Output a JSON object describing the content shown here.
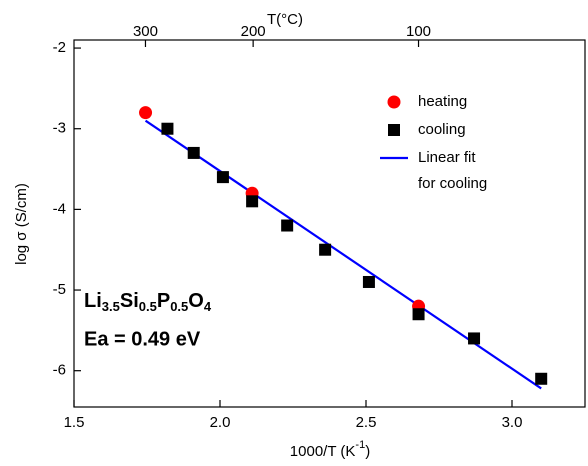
{
  "chart_data": {
    "type": "scatter",
    "top_axis_label": "T(°C)",
    "top_ticks": [
      300,
      200,
      100
    ],
    "xlabel": [
      "1000/T (K",
      "-1",
      ")"
    ],
    "ylabel": "log σ (S/cm)",
    "xlim": [
      1.5,
      3.25
    ],
    "ylim": [
      -6.45,
      -1.9
    ],
    "xticks": [
      1.5,
      {
        "value": 2,
        "label": "2.0"
      },
      2.5,
      {
        "value": 3,
        "label": "3.0"
      }
    ],
    "yticks": [
      -2,
      -3,
      -4,
      -5,
      -6
    ],
    "legend": "upper right",
    "series": [
      {
        "name": [
          "heating"
        ],
        "type": "scatter",
        "marker": "circle",
        "color": "#ff0000",
        "x": [
          1.745,
          2.11,
          2.68
        ],
        "values": [
          -2.8,
          -3.8,
          -5.2
        ]
      },
      {
        "name": [
          "cooling"
        ],
        "type": "scatter",
        "marker": "square",
        "color": "#000000",
        "x": [
          1.82,
          1.91,
          2.01,
          2.11,
          2.23,
          2.36,
          2.51,
          2.68,
          2.87,
          3.1
        ],
        "values": [
          -3.0,
          -3.3,
          -3.6,
          -3.9,
          -4.2,
          -4.5,
          -4.9,
          -5.3,
          -5.6,
          -6.1
        ]
      },
      {
        "name": [
          "Linear fit",
          "for cooling"
        ],
        "type": "line",
        "color": "#0000ff",
        "x": [
          1.745,
          3.1
        ],
        "values": [
          -2.9,
          -6.22
        ]
      }
    ],
    "formula": [
      [
        "Li",
        "3.5"
      ],
      [
        "Si",
        "0.5"
      ],
      [
        "P",
        "0.5"
      ],
      [
        "O",
        "4"
      ]
    ],
    "annotation": "Ea = 0.49 eV"
  }
}
